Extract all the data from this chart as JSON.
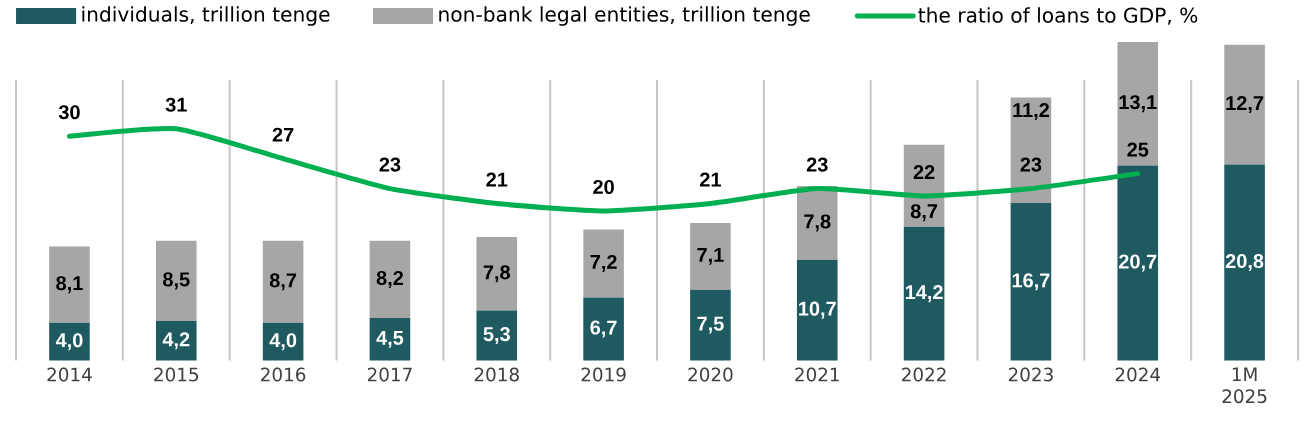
{
  "chart_data": {
    "type": "bar",
    "stacked": true,
    "grid": "x",
    "legend": "top",
    "categories": [
      "2014",
      "2015",
      "2016",
      "2017",
      "2018",
      "2019",
      "2020",
      "2021",
      "2022",
      "2023",
      "2024",
      "1M 2025"
    ],
    "series": [
      {
        "name": "individuals, trillion tenge",
        "color": "#1f5a60",
        "values": [
          4.0,
          4.2,
          4.0,
          4.5,
          5.3,
          6.7,
          7.5,
          10.7,
          14.2,
          16.7,
          20.7,
          20.8
        ],
        "value_labels": [
          "4,0",
          "4,2",
          "4,0",
          "4,5",
          "5,3",
          "6,7",
          "7,5",
          "10,7",
          "14,2",
          "16,7",
          "20,7",
          "20,8"
        ]
      },
      {
        "name": "non-bank legal entities, trillion tenge",
        "color": "#a6a6a6",
        "values": [
          8.1,
          8.5,
          8.7,
          8.2,
          7.8,
          7.2,
          7.1,
          7.8,
          8.7,
          11.2,
          13.1,
          12.7
        ],
        "value_labels": [
          "8,1",
          "8,5",
          "8,7",
          "8,2",
          "7,8",
          "7,2",
          "7,1",
          "7,8",
          "8,7",
          "11,2",
          "13,1",
          "12,7"
        ]
      },
      {
        "name": "the ratio of loans to GDP, %",
        "type": "line",
        "axis": "y2",
        "color": "#00b050",
        "values": [
          30,
          31,
          27,
          23,
          21,
          20,
          21,
          23,
          22,
          23,
          25,
          null
        ],
        "value_labels": [
          "30",
          "31",
          "27",
          "23",
          "21",
          "20",
          "21",
          "23",
          "22",
          "23",
          "25",
          null
        ]
      }
    ]
  }
}
